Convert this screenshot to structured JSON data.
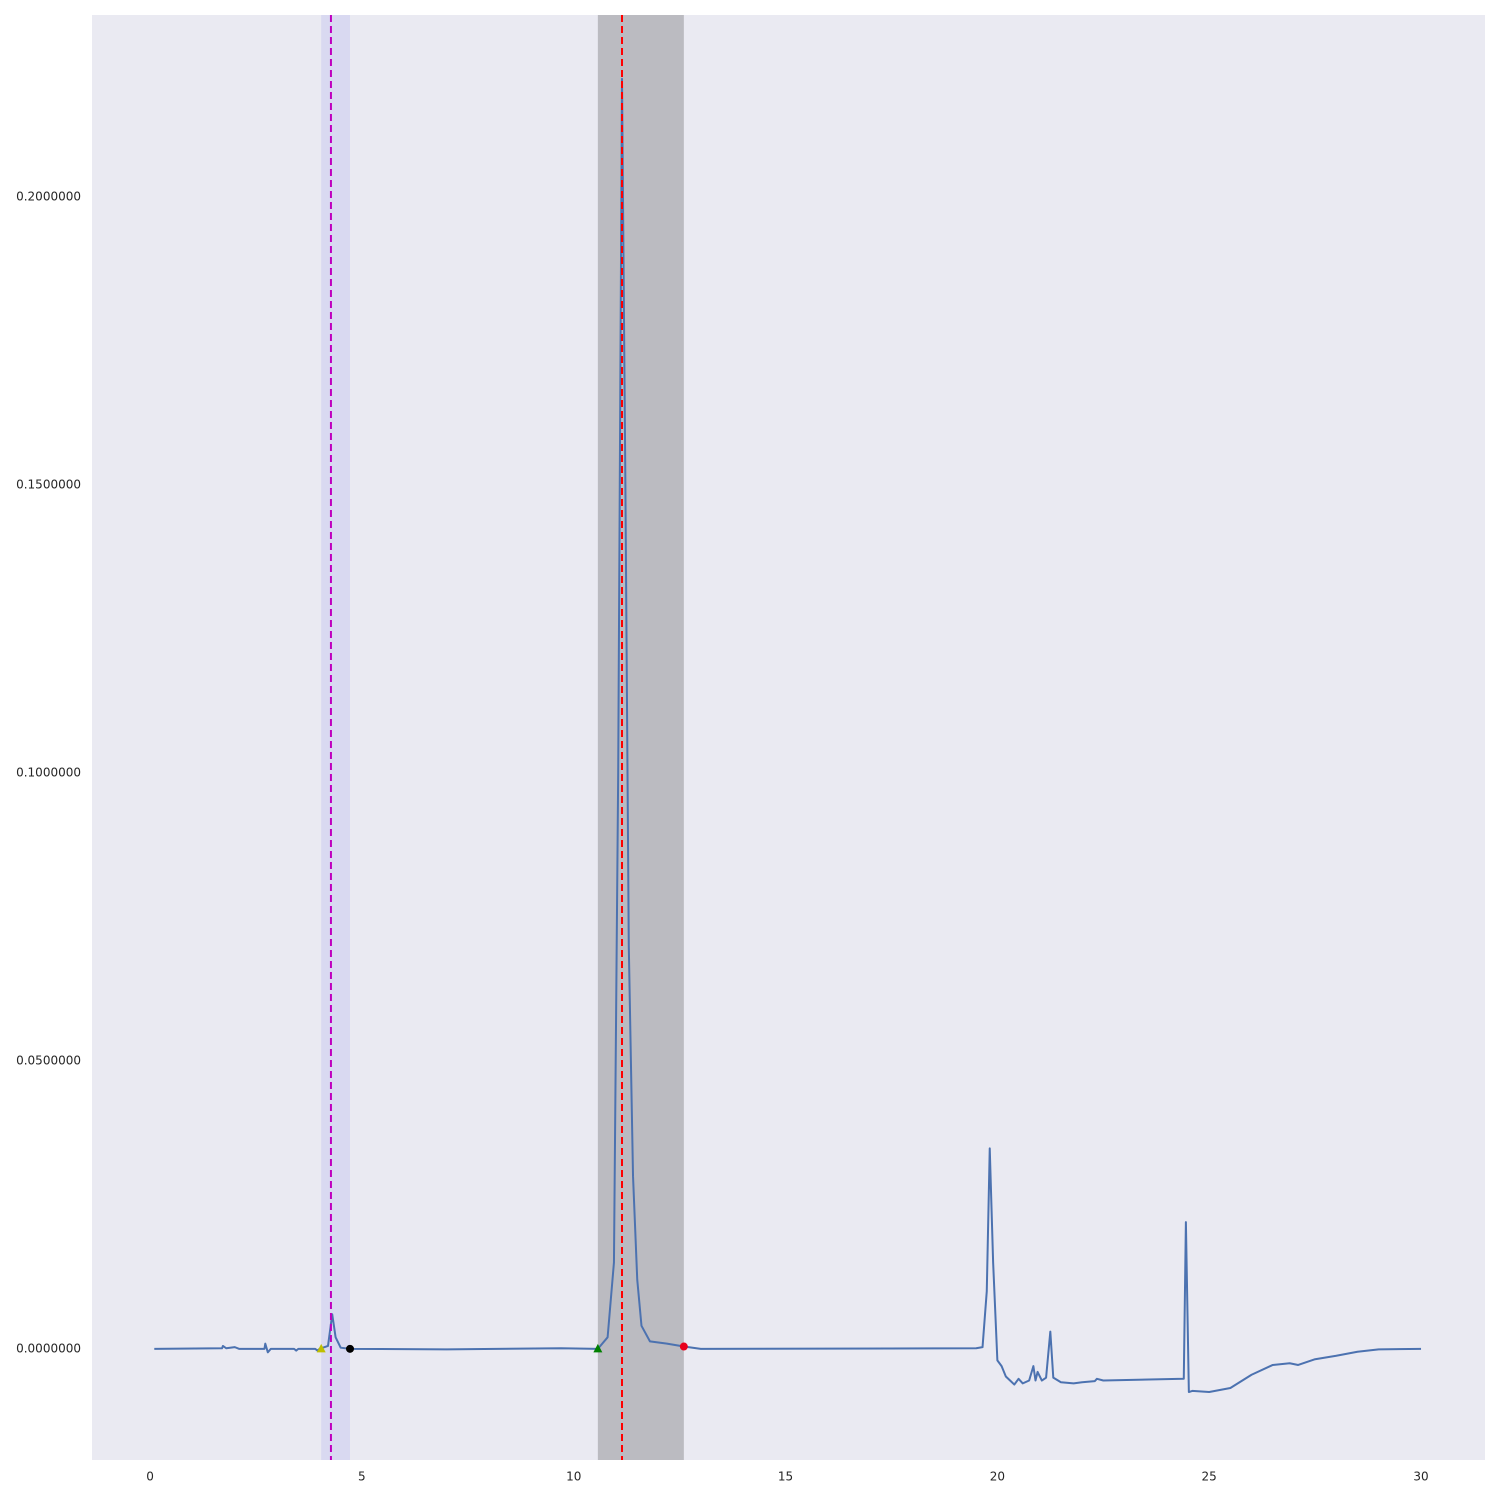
{
  "chart_data": {
    "type": "line",
    "x": [
      0.1,
      1.7,
      1.72,
      1.8,
      2.0,
      2.1,
      2.7,
      2.72,
      2.78,
      2.85,
      3.4,
      3.45,
      3.5,
      3.9,
      3.95,
      4.0,
      4.2,
      4.3,
      4.38,
      4.5,
      4.72,
      7.0,
      9.7,
      10.57,
      10.8,
      10.95,
      11.05,
      11.14,
      11.22,
      11.3,
      11.4,
      11.5,
      11.6,
      11.8,
      12.2,
      12.6,
      13.0,
      19.5,
      19.65,
      19.75,
      19.82,
      19.9,
      20.0,
      20.1,
      20.2,
      20.3,
      20.4,
      20.5,
      20.6,
      20.75,
      20.85,
      20.9,
      20.95,
      21.05,
      21.15,
      21.25,
      21.32,
      21.5,
      21.8,
      22.0,
      22.3,
      22.35,
      22.5,
      24.4,
      24.45,
      24.52,
      24.6,
      25.0,
      25.5,
      26.0,
      26.5,
      26.9,
      27.1,
      27.5,
      28.0,
      28.5,
      29.0,
      30.0
    ],
    "series": [
      {
        "color": "#4c72b0",
        "values": [
          0,
          0.0001,
          0.0005,
          0.0001,
          0.0003,
          0,
          0,
          0.0009,
          -0.0006,
          0,
          0,
          -0.0003,
          0,
          0,
          -0.0003,
          0,
          0.0005,
          0.006,
          0.002,
          0.0002,
          0,
          -0.0001,
          0.0001,
          0,
          0.002,
          0.015,
          0.1,
          0.2205,
          0.15,
          0.07,
          0.03,
          0.012,
          0.004,
          0.0013,
          0.0009,
          0.0004,
          0,
          0.0001,
          0.0003,
          0.01,
          0.0348,
          0.015,
          -0.002,
          -0.003,
          -0.0048,
          -0.0055,
          -0.0062,
          -0.0052,
          -0.006,
          -0.0055,
          -0.003,
          -0.0055,
          -0.004,
          -0.0055,
          -0.005,
          0.003,
          -0.005,
          -0.0058,
          -0.006,
          -0.0058,
          -0.0056,
          -0.0052,
          -0.0055,
          -0.0052,
          0.022,
          -0.0075,
          -0.0073,
          -0.0075,
          -0.0068,
          -0.0045,
          -0.0028,
          -0.0025,
          -0.0028,
          -0.0018,
          -0.0012,
          -0.0005,
          -0.0001,
          0
        ]
      }
    ],
    "spans": [
      {
        "range": [
          4.04,
          4.72
        ],
        "color": "#d9d9f1"
      },
      {
        "range": [
          10.57,
          12.6
        ],
        "color": "#bbbbc1"
      }
    ],
    "vlines": [
      {
        "x": 4.27,
        "color": "#bf00bf"
      },
      {
        "x": 11.14,
        "color": "#ff0000"
      }
    ],
    "markers": [
      {
        "x": 4.04,
        "y": 0,
        "color": "#bfbf00",
        "shape": "triangle"
      },
      {
        "x": 4.72,
        "y": 0,
        "color": "#000000",
        "shape": "circle"
      },
      {
        "x": 10.57,
        "y": 0,
        "color": "#008000",
        "shape": "triangle"
      },
      {
        "x": 12.6,
        "y": 0.0004,
        "color": "#e8001c",
        "shape": "circle"
      }
    ],
    "xlim": [
      -1.37,
      31.51
    ],
    "ylim": [
      -0.0193,
      0.2316
    ],
    "xticks": [
      0,
      5,
      10,
      15,
      20,
      25,
      30
    ],
    "yticks": [
      {
        "value": 0,
        "label": "0.0000000"
      },
      {
        "value": 0.05,
        "label": "0.0500000"
      },
      {
        "value": 0.1,
        "label": "0.1000000"
      },
      {
        "value": 0.15,
        "label": "0.1500000"
      },
      {
        "value": 0.2,
        "label": "0.2000000"
      }
    ],
    "grid": false,
    "background": "#eaeaf2"
  }
}
